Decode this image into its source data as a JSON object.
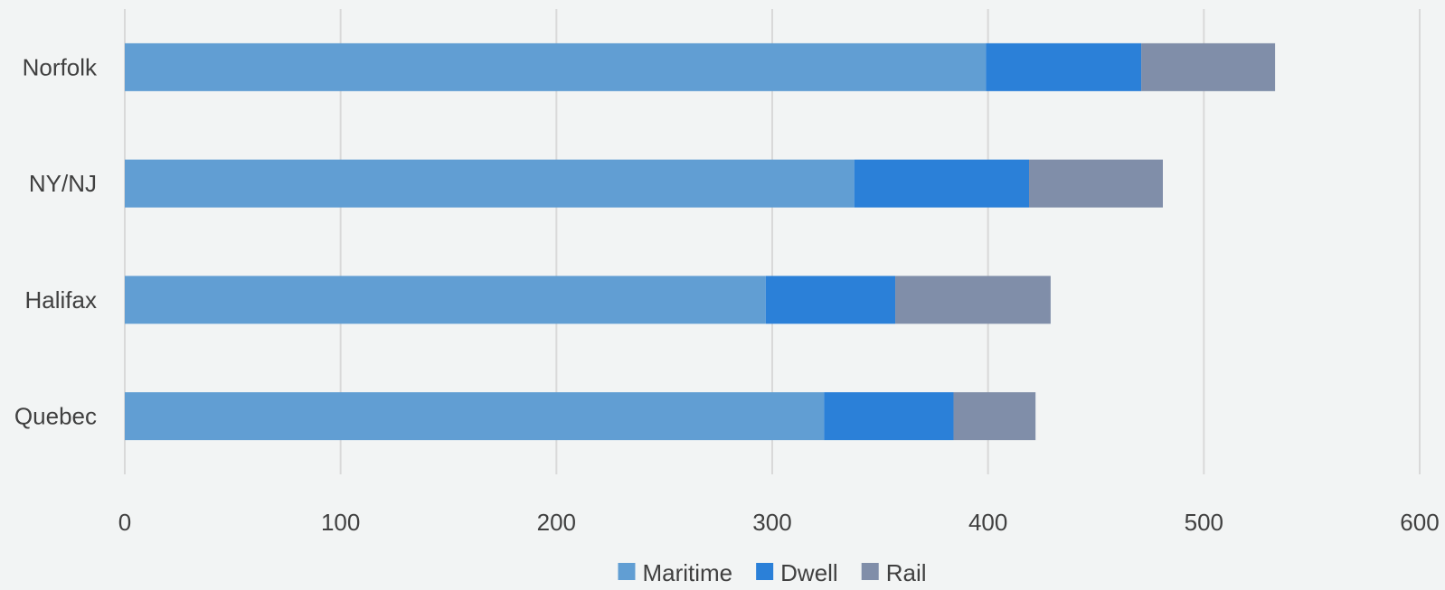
{
  "chart_data": {
    "type": "bar",
    "orientation": "horizontal",
    "stacked": true,
    "title": "",
    "xlabel": "",
    "ylabel": "",
    "categories": [
      "Norfolk",
      "NY/NJ",
      "Halifax",
      "Quebec"
    ],
    "series": [
      {
        "name": "Maritime",
        "values": [
          399,
          338,
          297,
          324
        ],
        "color": "#619ed3"
      },
      {
        "name": "Dwell",
        "values": [
          72,
          81,
          60,
          60
        ],
        "color": "#2b80d8"
      },
      {
        "name": "Rail",
        "values": [
          62,
          62,
          72,
          38
        ],
        "color": "#808ea9"
      }
    ],
    "xlim": [
      0,
      600
    ],
    "xticks": [
      "0",
      "100",
      "200",
      "300",
      "400",
      "500",
      "600"
    ],
    "grid": "vertical",
    "legend": "bottom-center"
  }
}
